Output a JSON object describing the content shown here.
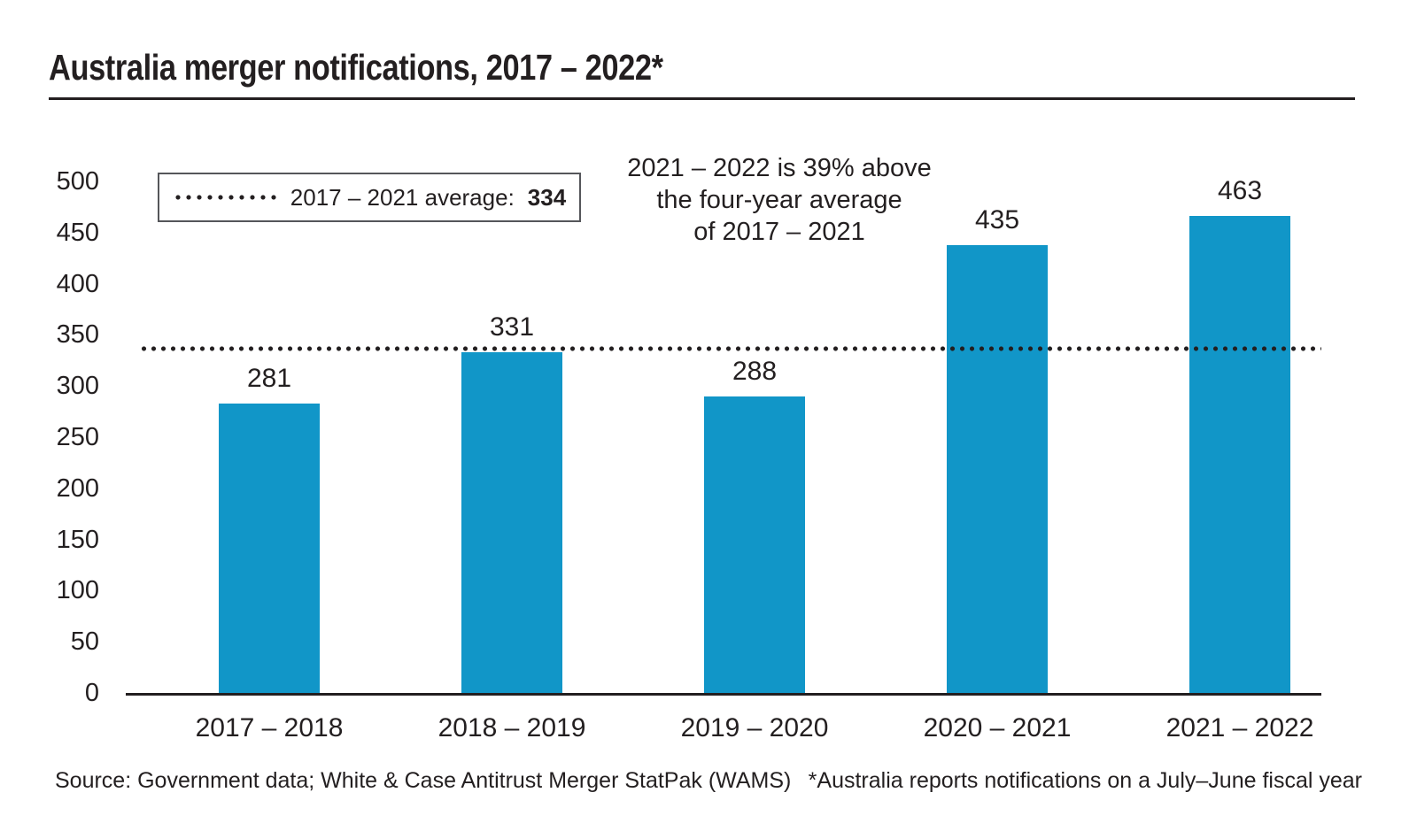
{
  "title": "Australia merger notifications, 2017 – 2022*",
  "legend": {
    "label": "2017 – 2021 average:",
    "value": "334"
  },
  "annotation": {
    "lines": [
      "2021 – 2022 is 39% above",
      "the four-year average",
      "of 2017 – 2021"
    ]
  },
  "footer": {
    "source": "Source: Government data; White & Case Antitrust Merger StatPak (WAMS)",
    "footnote": "*Australia reports notifications on a July–June fiscal year"
  },
  "colors": {
    "bar": "#1196c8",
    "text": "#231f20",
    "average_line": "#231f20",
    "legend_border": "#55565a"
  },
  "chart_data": {
    "type": "bar",
    "title": "Australia merger notifications, 2017 – 2022*",
    "categories": [
      "2017 – 2018",
      "2018 – 2019",
      "2019 – 2020",
      "2020 – 2021",
      "2021 – 2022"
    ],
    "values": [
      281,
      331,
      288,
      435,
      463
    ],
    "data_labels": [
      "281",
      "331",
      "288",
      "435",
      "463"
    ],
    "average_line": {
      "value": 334,
      "label": "2017 – 2021 average: 334",
      "style": "dotted"
    },
    "xlabel": "",
    "ylabel": "",
    "ylim": [
      0,
      500
    ],
    "ytick_step": 50,
    "grid": false,
    "legend_position": "top-left",
    "annotation": "2021 – 2022 is 39% above the four-year average of 2017 – 2021"
  }
}
